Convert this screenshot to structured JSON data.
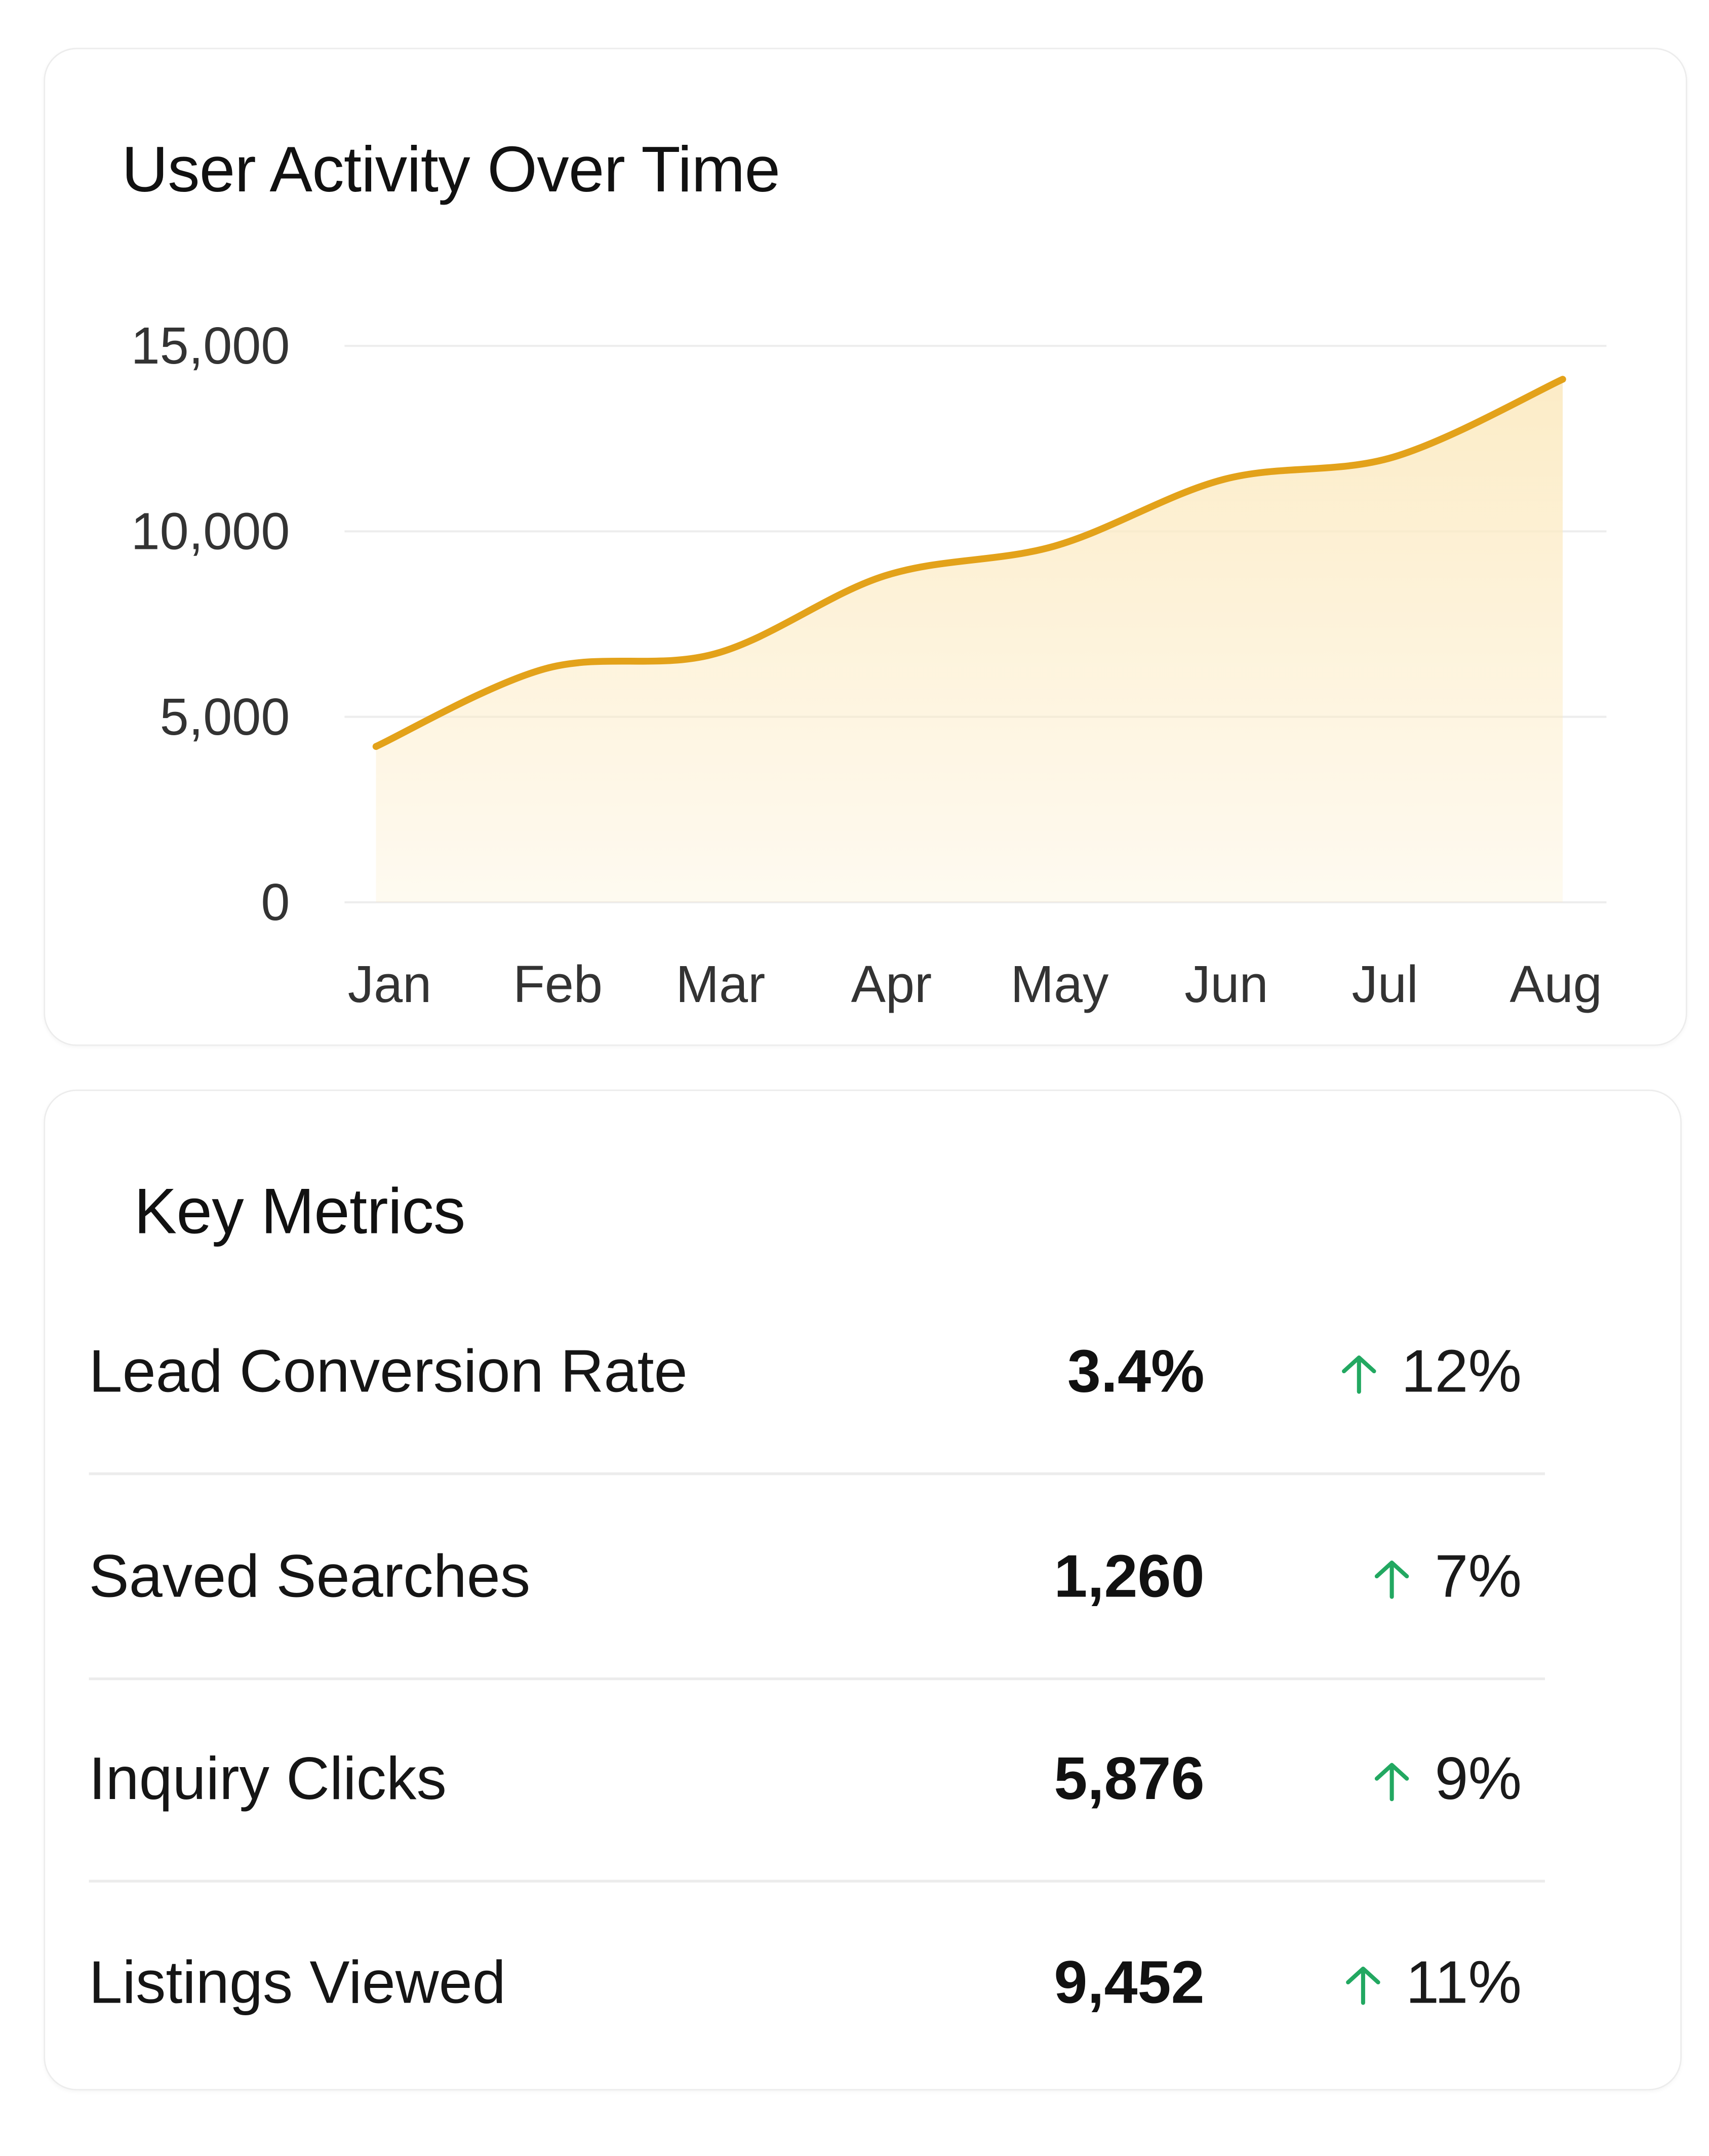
{
  "chart_data": {
    "type": "area",
    "title": "User Activity Over Time",
    "categories": [
      "Jan",
      "Feb",
      "Mar",
      "Apr",
      "May",
      "Jun",
      "Jul",
      "Aug"
    ],
    "series": [
      {
        "values": [
          4200,
          6300,
          6700,
          8800,
          9600,
          11400,
          12000,
          14100
        ]
      }
    ],
    "yticks": [
      0,
      5000,
      10000,
      15000
    ],
    "ytick_labels": [
      "0",
      "5,000",
      "10,000",
      "15,000"
    ],
    "ylim": [
      0,
      15000
    ],
    "grid": true,
    "line_color": "#E3A21A",
    "fill_color": "#FCEBC4"
  },
  "metrics": {
    "title": "Key Metrics",
    "up_color": "#22A861",
    "rows": [
      {
        "label": "Lead Conversion Rate",
        "value": "3.4%",
        "change": "12%",
        "direction": "up",
        "icon": "arrow-up-icon"
      },
      {
        "label": "Saved Searches",
        "value": "1,260",
        "change": "7%",
        "direction": "up",
        "icon": "arrow-up-icon"
      },
      {
        "label": "Inquiry Clicks",
        "value": "5,876",
        "change": "9%",
        "direction": "up",
        "icon": "arrow-up-icon"
      },
      {
        "label": "Listings Viewed",
        "value": "9,452",
        "change": "11%",
        "direction": "up",
        "icon": "arrow-up-icon"
      }
    ]
  }
}
